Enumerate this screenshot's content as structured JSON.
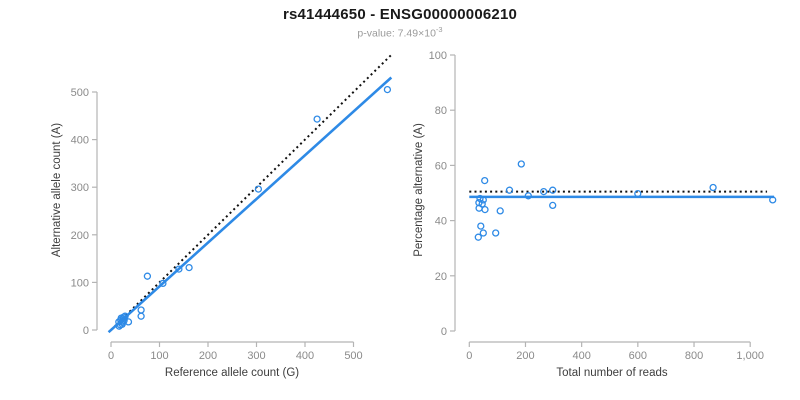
{
  "header": {
    "title": "rs41444650 - ENSG00000006210",
    "subtitle_prefix": "p-value: 7.49×10",
    "subtitle_exponent": "-3"
  },
  "colors": {
    "accent_blue": "#2E8AE6",
    "dotted_line": "#111111",
    "axis_line": "#b4b4b4",
    "tick_label": "#8a8a8a",
    "axis_label": "#3d3d3d",
    "title_text": "#1a1a1a",
    "subtitle_text": "#9b9b9b"
  },
  "chart_data": [
    {
      "type": "scatter",
      "panel": "left",
      "xlabel": "Reference allele count (G)",
      "ylabel": "Alternative allele count (A)",
      "xlim": [
        0,
        575
      ],
      "ylim": [
        0,
        575
      ],
      "grid": false,
      "xticks": [
        0,
        100,
        200,
        300,
        400,
        500
      ],
      "xtick_labels": [
        "0",
        "100",
        "200",
        "300",
        "400",
        "500"
      ],
      "yticks": [
        0,
        100,
        200,
        300,
        400,
        500
      ],
      "ytick_labels": [
        "0",
        "100",
        "200",
        "300",
        "400",
        "500"
      ],
      "points": [
        [
          570,
          505
        ],
        [
          425,
          443
        ],
        [
          304,
          296
        ],
        [
          161,
          131
        ],
        [
          140,
          128
        ],
        [
          107,
          98
        ],
        [
          75,
          113
        ],
        [
          62,
          42
        ],
        [
          62,
          29
        ],
        [
          36,
          17
        ],
        [
          21,
          25
        ],
        [
          27,
          20
        ],
        [
          16,
          17
        ],
        [
          23,
          12
        ],
        [
          17,
          8
        ],
        [
          29,
          29
        ],
        [
          25,
          24
        ],
        [
          20,
          21
        ],
        [
          24,
          16
        ],
        [
          19,
          11
        ],
        [
          26,
          27
        ]
      ],
      "lines": [
        {
          "name": "identity-line",
          "style": "dotted",
          "color": "#111111",
          "x": [
            0,
            578
          ],
          "y": [
            0,
            578
          ]
        },
        {
          "name": "regression-line",
          "style": "solid",
          "color": "#2E8AE6",
          "x": [
            -5,
            578
          ],
          "y": [
            -4.6,
            530.5
          ]
        }
      ]
    },
    {
      "type": "scatter",
      "panel": "right",
      "xlabel": "Total number of reads",
      "ylabel": "Percentage alternative (A)",
      "xlim": [
        0,
        1085
      ],
      "ylim": [
        0,
        100
      ],
      "grid": false,
      "xticks": [
        0,
        200,
        400,
        600,
        800,
        1000
      ],
      "xtick_labels": [
        "0",
        "200",
        "400",
        "600",
        "800",
        "1,000"
      ],
      "yticks": [
        0,
        20,
        40,
        60,
        80,
        100
      ],
      "ytick_labels": [
        "0",
        "20",
        "40",
        "60",
        "80",
        "100"
      ],
      "points": [
        [
          185,
          60.5
        ],
        [
          55,
          54.5
        ],
        [
          143,
          51
        ],
        [
          265,
          50.5
        ],
        [
          297,
          51
        ],
        [
          210,
          49
        ],
        [
          38,
          48
        ],
        [
          50,
          47.5
        ],
        [
          34,
          46.5
        ],
        [
          46,
          46
        ],
        [
          35,
          44.5
        ],
        [
          56,
          44
        ],
        [
          110,
          43.5
        ],
        [
          297,
          45.5
        ],
        [
          41,
          38
        ],
        [
          50,
          35.5
        ],
        [
          32,
          34
        ],
        [
          94,
          35.5
        ],
        [
          600,
          49.8
        ],
        [
          868,
          52
        ],
        [
          1080,
          47.5
        ]
      ],
      "lines": [
        {
          "name": "expected-50-line",
          "style": "dotted",
          "color": "#111111",
          "x": [
            0,
            1060
          ],
          "y": [
            50.5,
            50.5
          ]
        },
        {
          "name": "mean-percentage-line",
          "style": "solid",
          "color": "#2E8AE6",
          "x": [
            0,
            1085
          ],
          "y": [
            48.6,
            48.6
          ]
        }
      ]
    }
  ]
}
